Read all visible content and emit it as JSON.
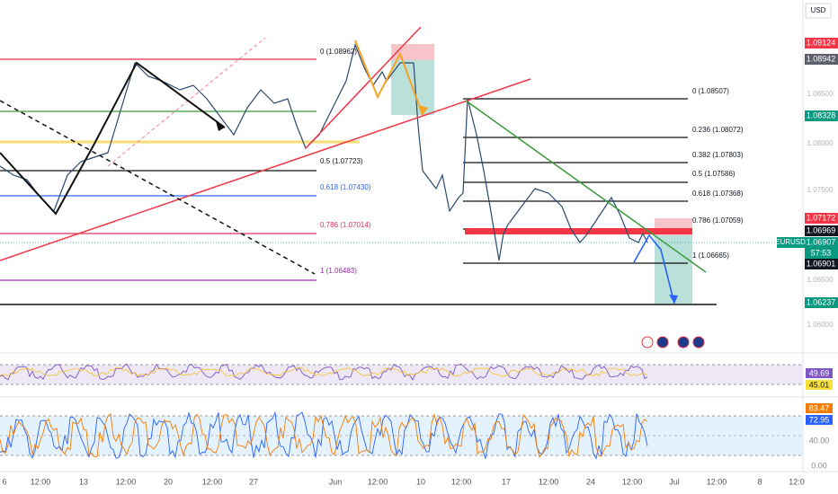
{
  "header": {
    "currency": "USD"
  },
  "price_axis": {
    "labels": [
      "1.09124",
      "1.08942",
      "1.08328",
      "1.07172",
      "1.06969",
      "1.06907",
      "57:53",
      "1.06901",
      "1.06237"
    ],
    "symbol": "EURUSD",
    "faint": [
      "1.08500",
      "1.08000",
      "1.07500",
      "1.06500",
      "1.06000"
    ]
  },
  "fib_left": [
    "0 (1.08962)",
    "0.5 (1.07723)",
    "0.618 (1.07430)",
    "0.786 (1.07014)",
    "1 (1.06483)"
  ],
  "fib_right": [
    "0 (1.08507)",
    "0.236 (1.08072)",
    "0.382 (1.07803)",
    "0.5 (1.07586)",
    "0.618 (1.07368)",
    "0.786 (1.07059)",
    "1 (1.06665)"
  ],
  "rsi": {
    "labels": [
      "49.69",
      "45.01"
    ]
  },
  "stoch": {
    "labels": [
      "83.47",
      "72.95",
      "40.00",
      "0.00"
    ]
  },
  "time_axis": [
    "6",
    "12:00",
    "13",
    "12:00",
    "20",
    "12:00",
    "27",
    "Jun",
    "12:00",
    "10",
    "12:00",
    "17",
    "12:00",
    "24",
    "12:00",
    "Jul",
    "12:00",
    "8",
    "12:0"
  ]
}
